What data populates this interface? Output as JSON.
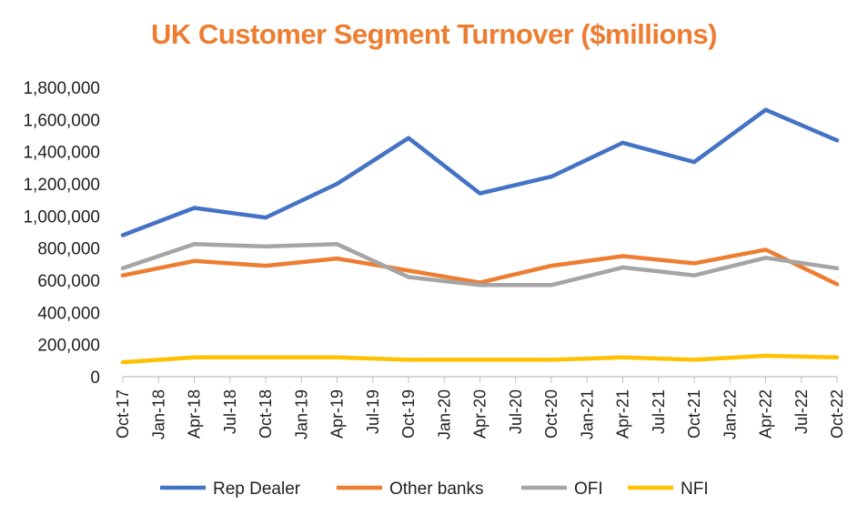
{
  "colors": {
    "title": "#ED7D31",
    "Rep Dealer": "#4472C4",
    "Other banks": "#ED7D31",
    "OFI": "#A5A5A5",
    "NFI": "#FFC000",
    "axis": "#BFBFBF"
  },
  "chart_data": {
    "type": "line",
    "title": "UK Customer Segment Turnover ($millions)",
    "xlabel": "",
    "ylabel": "",
    "ylim": [
      0,
      1800000
    ],
    "yticks": [
      0,
      200000,
      400000,
      600000,
      800000,
      1000000,
      1200000,
      1400000,
      1600000,
      1800000
    ],
    "ytick_labels": [
      "0",
      "200,000",
      "400,000",
      "600,000",
      "800,000",
      "1,000,000",
      "1,200,000",
      "1,400,000",
      "1,600,000",
      "1,800,000"
    ],
    "x_tick_labels": [
      "Oct-17",
      "Jan-18",
      "Apr-18",
      "Jul-18",
      "Oct-18",
      "Jan-19",
      "Apr-19",
      "Jul-19",
      "Oct-19",
      "Jan-20",
      "Apr-20",
      "Jul-20",
      "Oct-20",
      "Jan-21",
      "Apr-21",
      "Jul-21",
      "Oct-21",
      "Jan-22",
      "Apr-22",
      "Jul-22",
      "Oct-22"
    ],
    "categories": [
      "Oct-17",
      "Apr-18",
      "Oct-18",
      "Apr-19",
      "Oct-19",
      "Apr-20",
      "Oct-20",
      "Apr-21",
      "Oct-21",
      "Apr-22",
      "Oct-22"
    ],
    "grid": false,
    "legend_position": "bottom",
    "series": [
      {
        "name": "Rep Dealer",
        "values": [
          880000,
          1050000,
          990000,
          1200000,
          1485000,
          1140000,
          1245000,
          1455000,
          1335000,
          1660000,
          1470000
        ]
      },
      {
        "name": "Other banks",
        "values": [
          630000,
          720000,
          690000,
          735000,
          660000,
          585000,
          690000,
          750000,
          705000,
          790000,
          575000
        ]
      },
      {
        "name": "OFI",
        "values": [
          675000,
          825000,
          810000,
          825000,
          620000,
          570000,
          570000,
          680000,
          630000,
          740000,
          675000
        ]
      },
      {
        "name": "NFI",
        "values": [
          90000,
          120000,
          120000,
          120000,
          105000,
          105000,
          105000,
          120000,
          105000,
          130000,
          120000
        ]
      }
    ]
  }
}
